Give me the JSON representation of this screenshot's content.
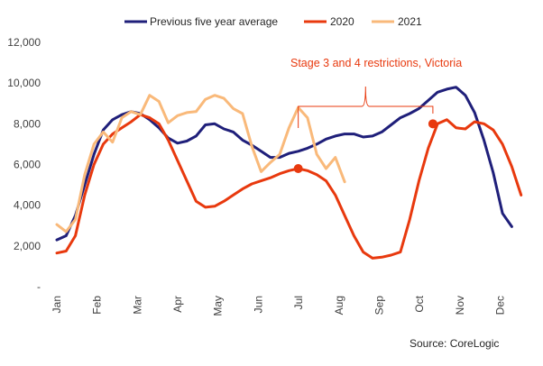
{
  "chart_data": {
    "type": "line",
    "title": "",
    "xlabel": "",
    "ylabel": "",
    "ylim": [
      0,
      12000
    ],
    "y_ticks": [
      0,
      2000,
      4000,
      6000,
      8000,
      10000,
      12000
    ],
    "y_tick_labels": [
      "-",
      "2,000",
      "4,000",
      "6,000",
      "8,000",
      "10,000",
      "12,000"
    ],
    "x_unit": "week of year",
    "xlim": [
      1,
      52
    ],
    "months": [
      "Jan",
      "Feb",
      "Mar",
      "Apr",
      "May",
      "Jun",
      "Jul",
      "Aug",
      "Sep",
      "Oct",
      "Nov",
      "Dec"
    ],
    "legend_position": "top",
    "grid": false,
    "series": [
      {
        "name": "Previous five year average",
        "color": "#1f1f7a",
        "x": [
          1,
          2,
          3,
          4,
          5,
          6,
          7,
          8,
          9,
          10,
          11,
          12,
          13,
          14,
          15,
          16,
          17,
          18,
          19,
          20,
          21,
          22,
          23,
          24,
          25,
          26,
          27,
          28,
          29,
          30,
          31,
          32,
          33,
          34,
          35,
          36,
          37,
          38,
          39,
          40,
          41,
          42,
          43,
          44,
          45,
          46,
          47,
          48,
          49,
          50,
          51,
          52
        ],
        "values": [
          2300,
          2500,
          3500,
          5000,
          6500,
          7700,
          8200,
          8450,
          8600,
          8500,
          8200,
          7800,
          7300,
          7050,
          7150,
          7400,
          7950,
          8000,
          7750,
          7600,
          7200,
          6950,
          6650,
          6350,
          6350,
          6550,
          6650,
          6800,
          7000,
          7250,
          7400,
          7500,
          7500,
          7350,
          7400,
          7600,
          7950,
          8300,
          8500,
          8750,
          9150,
          9550,
          9700,
          9800,
          9400,
          8550,
          7200,
          5600,
          3600,
          2950,
          null,
          null
        ]
      },
      {
        "name": "2020",
        "color": "#e8390e",
        "x": [
          1,
          2,
          3,
          4,
          5,
          6,
          7,
          8,
          9,
          10,
          11,
          12,
          13,
          14,
          15,
          16,
          17,
          18,
          19,
          20,
          21,
          22,
          23,
          24,
          25,
          26,
          27,
          28,
          29,
          30,
          31,
          32,
          33,
          34,
          35,
          36,
          37,
          38,
          39,
          40,
          41,
          42,
          43,
          44,
          45,
          46,
          47,
          48,
          49,
          50,
          51,
          52
        ],
        "values": [
          1650,
          1750,
          2500,
          4500,
          6000,
          7000,
          7500,
          7800,
          8100,
          8450,
          8300,
          8000,
          7200,
          6200,
          5200,
          4200,
          3900,
          3950,
          4200,
          4500,
          4800,
          5050,
          5200,
          5350,
          5550,
          5700,
          5800,
          5700,
          5500,
          5200,
          4500,
          3500,
          2500,
          1700,
          1400,
          1450,
          1550,
          1700,
          3300,
          5200,
          6800,
          8000,
          8200,
          7800,
          7750,
          8100,
          8000,
          7700,
          7000,
          5900,
          4500,
          null
        ]
      },
      {
        "name": "2021",
        "color": "#f9b97a",
        "x": [
          1,
          2,
          3,
          4,
          5,
          6,
          7,
          8,
          9,
          10,
          11,
          12,
          13,
          14,
          15,
          16,
          17,
          18,
          19,
          20,
          21,
          22,
          23,
          24,
          25,
          26,
          27,
          28,
          29,
          30,
          31,
          32
        ],
        "values": [
          3050,
          2700,
          3300,
          5500,
          7000,
          7600,
          7100,
          8300,
          8600,
          8450,
          9400,
          9100,
          8050,
          8400,
          8550,
          8600,
          9200,
          9400,
          9250,
          8750,
          8500,
          6900,
          5650,
          6100,
          6500,
          7800,
          8800,
          8300,
          6500,
          5800,
          6350,
          5150
        ]
      }
    ],
    "markers": [
      {
        "series": "2020",
        "x": 27,
        "value": 5800
      },
      {
        "series": "2020",
        "x": 41.5,
        "value": 8000
      }
    ],
    "annotations": [
      {
        "text": "Stage 3 and 4 restrictions, Victoria",
        "x_start": 27,
        "x_end": 41.5
      }
    ],
    "source": "Source: CoreLogic"
  }
}
